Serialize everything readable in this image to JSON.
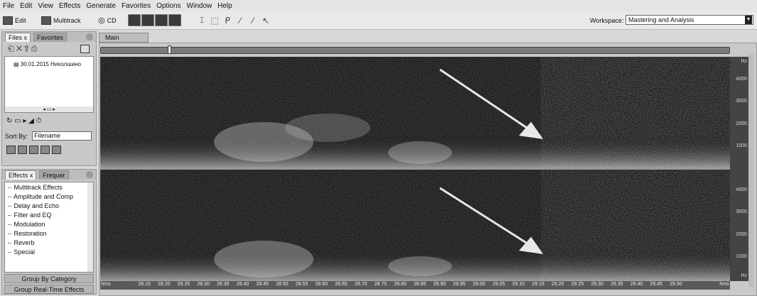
{
  "menu": [
    "File",
    "Edit",
    "View",
    "Effects",
    "Generate",
    "Favorites",
    "Options",
    "Window",
    "Help"
  ],
  "toolbar": {
    "edit_label": "Edit",
    "multitrack_label": "Multitrack",
    "cd_label": "CD",
    "workspace_label": "Workspace:",
    "workspace_value": "Mastering and Analysis"
  },
  "files_panel": {
    "tab_files": "Files",
    "tab_favorites": "Favorites",
    "file_item": "30.01.2015 Нихолшино",
    "sort_label": "Sort By:",
    "sort_value": "Filename"
  },
  "effects_panel": {
    "tab_effects": "Effects",
    "tab_frequency": "Frequer",
    "items": [
      "Multitrack Effects",
      "Amplitude and Comp",
      "Delay and Echo",
      "Filter and EQ",
      "Modulation",
      "Restoration",
      "Reverb",
      "Special"
    ],
    "group_by": "Group By Category",
    "group_realtime": "Group Real-Time Effects"
  },
  "main": {
    "tab_label": "Main"
  },
  "spectrogram": {
    "hz_unit": "Hz",
    "freq_labels_top": [
      "4000",
      "3000",
      "2000",
      "1000"
    ],
    "freq_labels_bottom": [
      "4000",
      "3000",
      "2000",
      "1000"
    ],
    "hz_bottom": "Hz",
    "time_unit": "hms",
    "time_ticks": [
      "28.15",
      "28.20",
      "28.25",
      "28.30",
      "28.35",
      "28.40",
      "28.45",
      "28.50",
      "28.55",
      "28.60",
      "28.65",
      "28.70",
      "28.75",
      "28.80",
      "28.85",
      "28.90",
      "28.95",
      "29.00",
      "29.05",
      "29.10",
      "29.15",
      "29.20",
      "29.25",
      "29.30",
      "29.35",
      "29.40",
      "29.45",
      "29.50"
    ],
    "time_end": "hms"
  }
}
